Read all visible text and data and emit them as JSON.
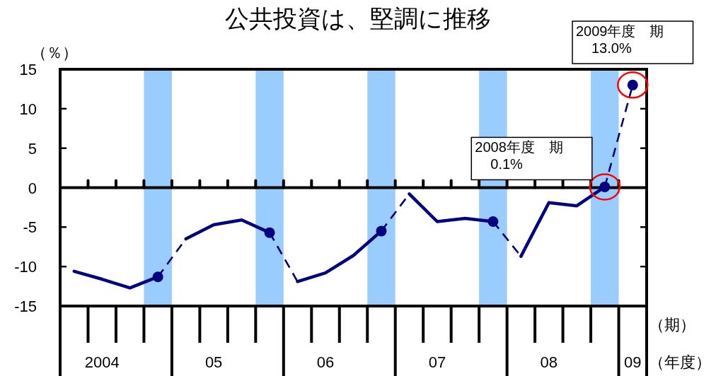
{
  "chart_data": {
    "type": "line",
    "title": "公共投資は、堅調に推移",
    "ylabel": "（％）",
    "xlabel": "（年度）",
    "categories": [
      null,
      "2004",
      null,
      null,
      null,
      "05",
      null,
      null,
      null,
      "06",
      null,
      null,
      null,
      "07",
      null,
      null,
      null,
      "08",
      null,
      null,
      "09"
    ],
    "ylim": [
      -15,
      15
    ],
    "yticks": [
      -15,
      -10,
      -5,
      0,
      5,
      10,
      15
    ],
    "ref_lines": [
      {
        "axis": "y",
        "value": 0,
        "color": "#000000"
      }
    ],
    "series": [
      {
        "line_style": "solid",
        "color": "#000080",
        "values": [
          -10.6,
          -11.6,
          -12.7,
          -11.3,
          null,
          null,
          null,
          null,
          null,
          null,
          null,
          null,
          null,
          null,
          null,
          null,
          null,
          null,
          null,
          null,
          null
        ]
      },
      {
        "line_style": "solid",
        "color": "#000080",
        "values": [
          null,
          null,
          null,
          null,
          -6.5,
          -4.7,
          -4.1,
          -5.7,
          null,
          null,
          null,
          null,
          null,
          null,
          null,
          null,
          null,
          null,
          null,
          null,
          null
        ]
      },
      {
        "line_style": "solid",
        "color": "#000080",
        "values": [
          null,
          null,
          null,
          null,
          null,
          null,
          null,
          null,
          -11.9,
          -10.8,
          -8.6,
          -5.5,
          null,
          null,
          null,
          null,
          null,
          null,
          null,
          null,
          null
        ]
      },
      {
        "line_style": "solid",
        "color": "#000080",
        "values": [
          null,
          null,
          null,
          null,
          null,
          null,
          null,
          null,
          null,
          null,
          null,
          null,
          -0.8,
          -4.3,
          -3.9,
          -4.3,
          null,
          null,
          null,
          null,
          null
        ]
      },
      {
        "line_style": "solid",
        "color": "#000080",
        "values": [
          null,
          null,
          null,
          null,
          null,
          null,
          null,
          null,
          null,
          null,
          null,
          null,
          null,
          null,
          null,
          null,
          -8.7,
          -1.9,
          -2.3,
          0.1,
          null
        ]
      },
      {
        "line_style": "dashed",
        "color": "#000080",
        "values": [
          null,
          null,
          null,
          -11.3,
          -6.5,
          null,
          null,
          -5.7,
          -11.9,
          null,
          null,
          -5.5,
          -0.8,
          null,
          null,
          -4.3,
          -8.7,
          null,
          null,
          0.1,
          13.0
        ]
      },
      {
        "type": "scatter",
        "marker": "circle",
        "color": "#000080",
        "values": [
          null,
          null,
          null,
          -11.3,
          null,
          null,
          null,
          -5.7,
          null,
          null,
          null,
          -5.5,
          null,
          null,
          null,
          -4.3,
          null,
          null,
          null,
          0.1,
          13.0
        ]
      }
    ],
    "annotations": [
      "（期）",
      {
        "text": "2008年度　期\n0.1%",
        "y": 0.1
      },
      {
        "text": "2009年度　期\n13.0%",
        "x": "09",
        "y": 13.0
      }
    ]
  }
}
